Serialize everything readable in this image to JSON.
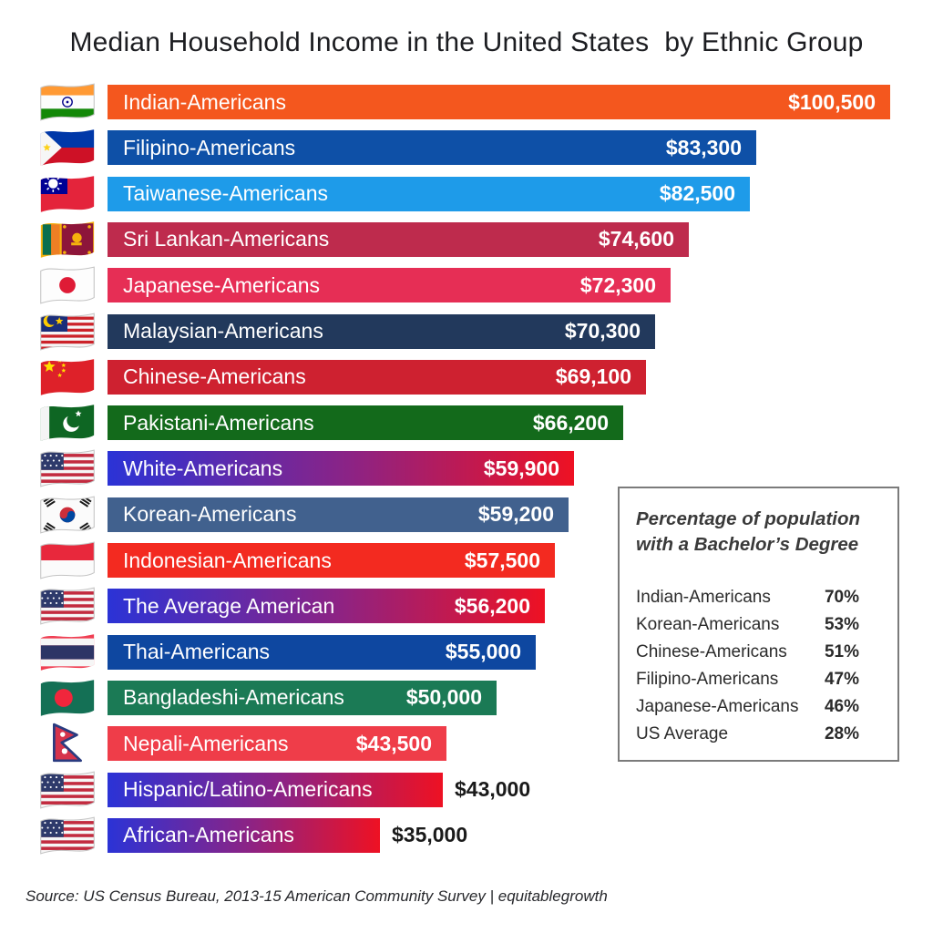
{
  "title": "Median Household Income in the United States  by Ethnic Group",
  "source": "Source: US Census Bureau, 2013-15 American Community Survey | equitablegrowth",
  "colors": {
    "gradient_start": "#2b33d6",
    "gradient_mid": "#8c2385",
    "gradient_end": "#ee1123",
    "outside_value_text": "#1a1a1a",
    "bar_text": "#ffffff",
    "inset_border": "#7b7b7b"
  },
  "chart_data": {
    "type": "bar",
    "orientation": "horizontal",
    "title": "Median Household Income in the United States by Ethnic Group",
    "unit": "USD",
    "xlim": [
      0,
      100500
    ],
    "max_value": 100500,
    "grid": false,
    "legend": false,
    "bars": [
      {
        "label": "Indian-Americans",
        "value": 100500,
        "display": "$100,500",
        "color": "#f4571e",
        "flag": "india",
        "flag_icon": "flag-india-icon",
        "value_inside": true
      },
      {
        "label": "Filipino-Americans",
        "value": 83300,
        "display": "$83,300",
        "color": "#0e50a7",
        "flag": "philippines",
        "flag_icon": "flag-philippines-icon",
        "value_inside": true
      },
      {
        "label": "Taiwanese-Americans",
        "value": 82500,
        "display": "$82,500",
        "color": "#1e9be9",
        "flag": "taiwan",
        "flag_icon": "flag-taiwan-icon",
        "value_inside": true
      },
      {
        "label": "Sri Lankan-Americans",
        "value": 74600,
        "display": "$74,600",
        "color": "#be2b4d",
        "flag": "srilanka",
        "flag_icon": "flag-sri-lanka-icon",
        "value_inside": true
      },
      {
        "label": "Japanese-Americans",
        "value": 72300,
        "display": "$72,300",
        "color": "#e62e55",
        "flag": "japan",
        "flag_icon": "flag-japan-icon",
        "value_inside": true
      },
      {
        "label": "Malaysian-Americans",
        "value": 70300,
        "display": "$70,300",
        "color": "#22395c",
        "flag": "malaysia",
        "flag_icon": "flag-malaysia-icon",
        "value_inside": true
      },
      {
        "label": "Chinese-Americans",
        "value": 69100,
        "display": "$69,100",
        "color": "#ce2130",
        "flag": "china",
        "flag_icon": "flag-china-icon",
        "value_inside": true
      },
      {
        "label": "Pakistani-Americans",
        "value": 66200,
        "display": "$66,200",
        "color": "#136a1b",
        "flag": "pakistan",
        "flag_icon": "flag-pakistan-icon",
        "value_inside": true
      },
      {
        "label": "White-Americans",
        "value": 59900,
        "display": "$59,900",
        "gradient": true,
        "flag": "usa",
        "flag_icon": "flag-usa-icon",
        "value_inside": true
      },
      {
        "label": "Korean-Americans",
        "value": 59200,
        "display": "$59,200",
        "color": "#41618e",
        "flag": "southkorea",
        "flag_icon": "flag-south-korea-icon",
        "value_inside": true
      },
      {
        "label": "Indonesian-Americans",
        "value": 57500,
        "display": "$57,500",
        "color": "#f32a20",
        "flag": "indonesia",
        "flag_icon": "flag-indonesia-icon",
        "value_inside": true
      },
      {
        "label": "The Average American",
        "value": 56200,
        "display": "$56,200",
        "gradient": true,
        "flag": "usa",
        "flag_icon": "flag-usa-icon",
        "value_inside": true
      },
      {
        "label": "Thai-Americans",
        "value": 55000,
        "display": "$55,000",
        "color": "#0e47a0",
        "flag": "thailand",
        "flag_icon": "flag-thailand-icon",
        "value_inside": true
      },
      {
        "label": "Bangladeshi-Americans",
        "value": 50000,
        "display": "$50,000",
        "color": "#1b7a55",
        "flag": "bangladesh",
        "flag_icon": "flag-bangladesh-icon",
        "value_inside": true
      },
      {
        "label": "Nepali-Americans",
        "value": 43500,
        "display": "$43,500",
        "color": "#ef3d49",
        "flag": "nepal",
        "flag_icon": "flag-nepal-icon",
        "value_inside": true
      },
      {
        "label": "Hispanic/Latino-Americans",
        "value": 43000,
        "display": "$43,000",
        "gradient": true,
        "flag": "usa",
        "flag_icon": "flag-usa-icon",
        "value_inside": false
      },
      {
        "label": "African-Americans",
        "value": 35000,
        "display": "$35,000",
        "gradient": true,
        "flag": "usa",
        "flag_icon": "flag-usa-icon",
        "value_inside": false
      }
    ],
    "inset": {
      "title": "Percentage of population\nwith a Bachelor’s Degree",
      "rows": [
        {
          "label": "Indian-Americans",
          "value": "70%"
        },
        {
          "label": "Korean-Americans",
          "value": "53%"
        },
        {
          "label": "Chinese-Americans",
          "value": "51%"
        },
        {
          "label": "Filipino-Americans",
          "value": "47%"
        },
        {
          "label": "Japanese-Americans",
          "value": "46%"
        },
        {
          "label": "US Average",
          "value": "28%"
        }
      ]
    }
  }
}
